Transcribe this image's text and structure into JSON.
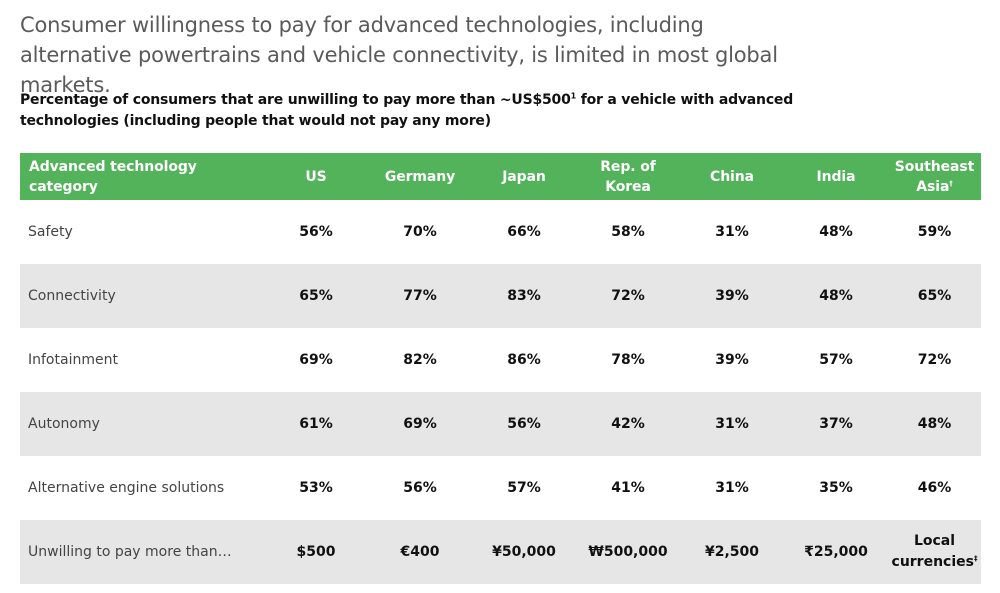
{
  "headline": "Consumer willingness to pay for advanced technologies, including alternative powertrains and vehicle connectivity, is limited in most global markets.",
  "subtitle": {
    "before": "Percentage of consumers that are unwilling to pay more than ~US$500",
    "sup": "1",
    "after": " for a vehicle with advanced technologies (including people that would not pay any more)"
  },
  "table": {
    "header": {
      "category": "Advanced technology category",
      "us": "US",
      "germany": "Germany",
      "japan": "Japan",
      "korea": "Rep. of Korea",
      "china": "China",
      "india": "India",
      "sea": "Southeast Asia",
      "sea_sup": "†"
    },
    "rows": [
      {
        "category": "Safety",
        "us": "56%",
        "germany": "70%",
        "japan": "66%",
        "korea": "58%",
        "china": "31%",
        "india": "48%",
        "sea": "59%"
      },
      {
        "category": "Connectivity",
        "us": "65%",
        "germany": "77%",
        "japan": "83%",
        "korea": "72%",
        "china": "39%",
        "india": "48%",
        "sea": "65%"
      },
      {
        "category": "Infotainment",
        "us": "69%",
        "germany": "82%",
        "japan": "86%",
        "korea": "78%",
        "china": "39%",
        "india": "57%",
        "sea": "72%"
      },
      {
        "category": "Autonomy",
        "us": "61%",
        "germany": "69%",
        "japan": "56%",
        "korea": "42%",
        "china": "31%",
        "india": "37%",
        "sea": "48%"
      },
      {
        "category": "Alternative engine solutions",
        "us": "53%",
        "germany": "56%",
        "japan": "57%",
        "korea": "41%",
        "china": "31%",
        "india": "35%",
        "sea": "46%"
      },
      {
        "category": "Unwilling to pay more than…",
        "us": "$500",
        "germany": "€400",
        "japan": "¥50,000",
        "korea": "₩500,000",
        "china": "¥2,500",
        "india": "₹25,000",
        "sea": "Local currencies",
        "sea_sup": "‡"
      }
    ]
  },
  "colors": {
    "header_green": "#53b35b",
    "row_shade": "#e6e6e6",
    "headline_gray": "#5a5a5a"
  }
}
